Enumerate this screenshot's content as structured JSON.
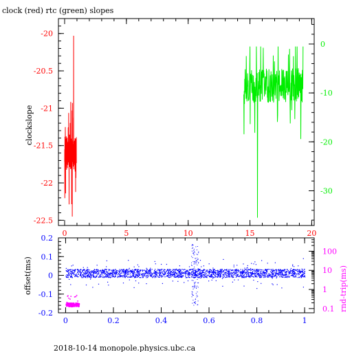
{
  "colors": {
    "clock": "#ff0000",
    "rtc": "#00ee00",
    "offset": "#0000ff",
    "roundtrip": "#ff00ff",
    "text": "#000000"
  },
  "chart_data": [
    {
      "type": "line",
      "title": "clock (red) rtc (green) slopes",
      "ylabel": "clockslope",
      "xlim": [
        -0.5,
        20.2
      ],
      "ylim_left": [
        -22.57,
        -19.8
      ],
      "ylim_right": [
        -37.1,
        5.2
      ],
      "x_ticks": [
        "0",
        "5",
        "10",
        "15",
        "20"
      ],
      "y_ticks_left": [
        "-20",
        "-20.5",
        "-21",
        "-21.5",
        "-22",
        "-22.5"
      ],
      "y_ticks_right": [
        "0",
        "-10",
        "-20",
        "-30"
      ],
      "grid": false,
      "series": [
        {
          "name": "clock",
          "axis": "left",
          "x_range": [
            0.0,
            0.95
          ],
          "y_range": [
            -22.45,
            -20.03
          ],
          "typical": -21.6
        },
        {
          "name": "rtc",
          "axis": "right",
          "x_range": [
            14.5,
            19.3
          ],
          "y_range": [
            -35.5,
            -0.5
          ],
          "typical": -8.5
        }
      ]
    },
    {
      "type": "scatter",
      "xlabel": "",
      "ylabel": "offset(ms)",
      "ylabel_right": "rnd-trip(ms)",
      "footer": "2018-10-14 monopole.physics.ubc.ca",
      "xlim": [
        -0.03,
        1.04
      ],
      "ylim": [
        -0.2,
        0.2
      ],
      "log_right": true,
      "ylim_right": [
        0.06,
        500
      ],
      "x_ticks": [
        "0",
        "0.2",
        "0.4",
        "0.6",
        "0.8",
        "1"
      ],
      "y_ticks_left": [
        "0.2",
        "0.1",
        "0",
        "-0.1",
        "-0.2"
      ],
      "y_ticks_right": [
        "100",
        "10",
        "1",
        "0.1"
      ],
      "grid": false,
      "series": [
        {
          "name": "offset",
          "axis": "left",
          "x_range": [
            0.0,
            1.0
          ],
          "typical_band": [
            -0.01,
            0.035
          ],
          "spike_x": 0.54,
          "spike_range": [
            -0.16,
            0.17
          ]
        },
        {
          "name": "rnd-trip",
          "axis": "right",
          "x_range": [
            0.0,
            0.055
          ],
          "typical": 0.17
        }
      ]
    }
  ]
}
